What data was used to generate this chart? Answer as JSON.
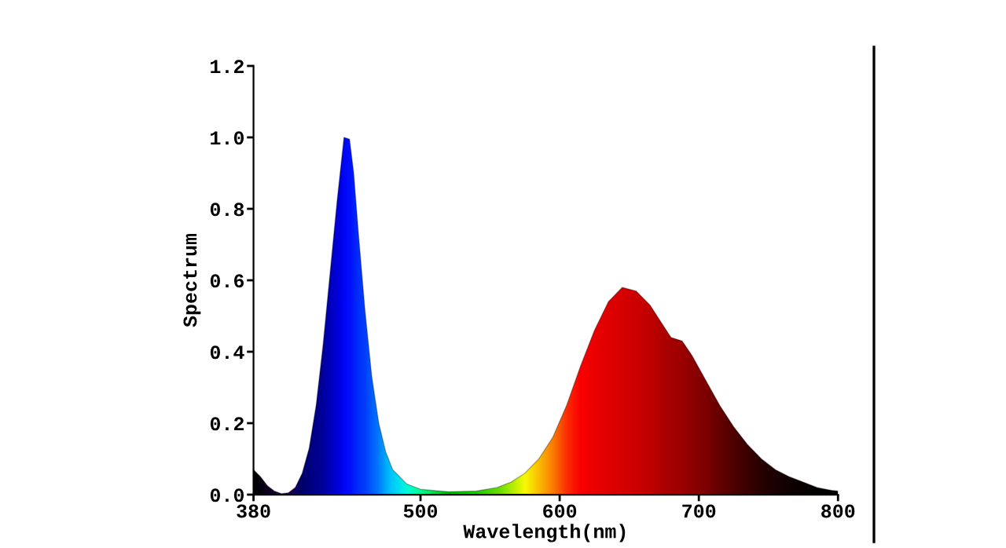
{
  "chart_data": {
    "type": "area",
    "xlabel": "Wavelength(nm)",
    "ylabel": "Spectrum",
    "xlim": [
      380,
      800
    ],
    "xticks": [
      380,
      500,
      600,
      700,
      800
    ],
    "ylim": [
      0,
      1.2
    ],
    "yticks": [
      {
        "value": 0,
        "label": "0.0"
      },
      0.2,
      0.4,
      0.6,
      0.8,
      {
        "value": 1,
        "label": "1.0"
      },
      1.2
    ],
    "grid": false,
    "legend": false,
    "series": [
      {
        "x": [
          380,
          385,
          390,
          395,
          400,
          405,
          410,
          415,
          420,
          425,
          430,
          435,
          440,
          445,
          449,
          452,
          455,
          460,
          465,
          470,
          475,
          480,
          490,
          500,
          520,
          540,
          555,
          565,
          575,
          585,
          595,
          605,
          615,
          625,
          635,
          645,
          655,
          665,
          675,
          680,
          688,
          695,
          705,
          715,
          725,
          735,
          745,
          755,
          765,
          775,
          785,
          795,
          800
        ],
        "values": [
          0.07,
          0.05,
          0.025,
          0.01,
          0.003,
          0.005,
          0.02,
          0.06,
          0.13,
          0.25,
          0.42,
          0.62,
          0.82,
          1.0,
          0.995,
          0.9,
          0.75,
          0.52,
          0.33,
          0.2,
          0.12,
          0.07,
          0.03,
          0.015,
          0.008,
          0.01,
          0.02,
          0.035,
          0.06,
          0.1,
          0.16,
          0.25,
          0.36,
          0.46,
          0.54,
          0.58,
          0.57,
          0.53,
          0.47,
          0.44,
          0.43,
          0.39,
          0.32,
          0.25,
          0.19,
          0.14,
          0.1,
          0.07,
          0.05,
          0.035,
          0.02,
          0.012,
          0.01
        ],
        "colors": [
          "#000000",
          "#080010",
          "#100020",
          "#180030",
          "#200040",
          "#200050",
          "#100060",
          "#000070",
          "#000080",
          "#000090",
          "#0000a0",
          "#0000c0",
          "#0000e0",
          "#0008ff",
          "#0010ff",
          "#0020ff",
          "#0030ff",
          "#0040ff",
          "#0060ff",
          "#0080ff",
          "#00b0ff",
          "#00d0ff",
          "#00ffe0",
          "#00ff90",
          "#00c000",
          "#20d000",
          "#60e000",
          "#b0f000",
          "#ffff00",
          "#ffc000",
          "#ff8000",
          "#ff3000",
          "#ff0000",
          "#f00000",
          "#e40000",
          "#dc0000",
          "#d00000",
          "#c40000",
          "#b00000",
          "#aa0000",
          "#a00000",
          "#900000",
          "#800000",
          "#680000",
          "#500000",
          "#3c0000",
          "#280000",
          "#1c0000",
          "#120000",
          "#0a0000",
          "#050000",
          "#020000",
          "#000000"
        ]
      }
    ]
  }
}
